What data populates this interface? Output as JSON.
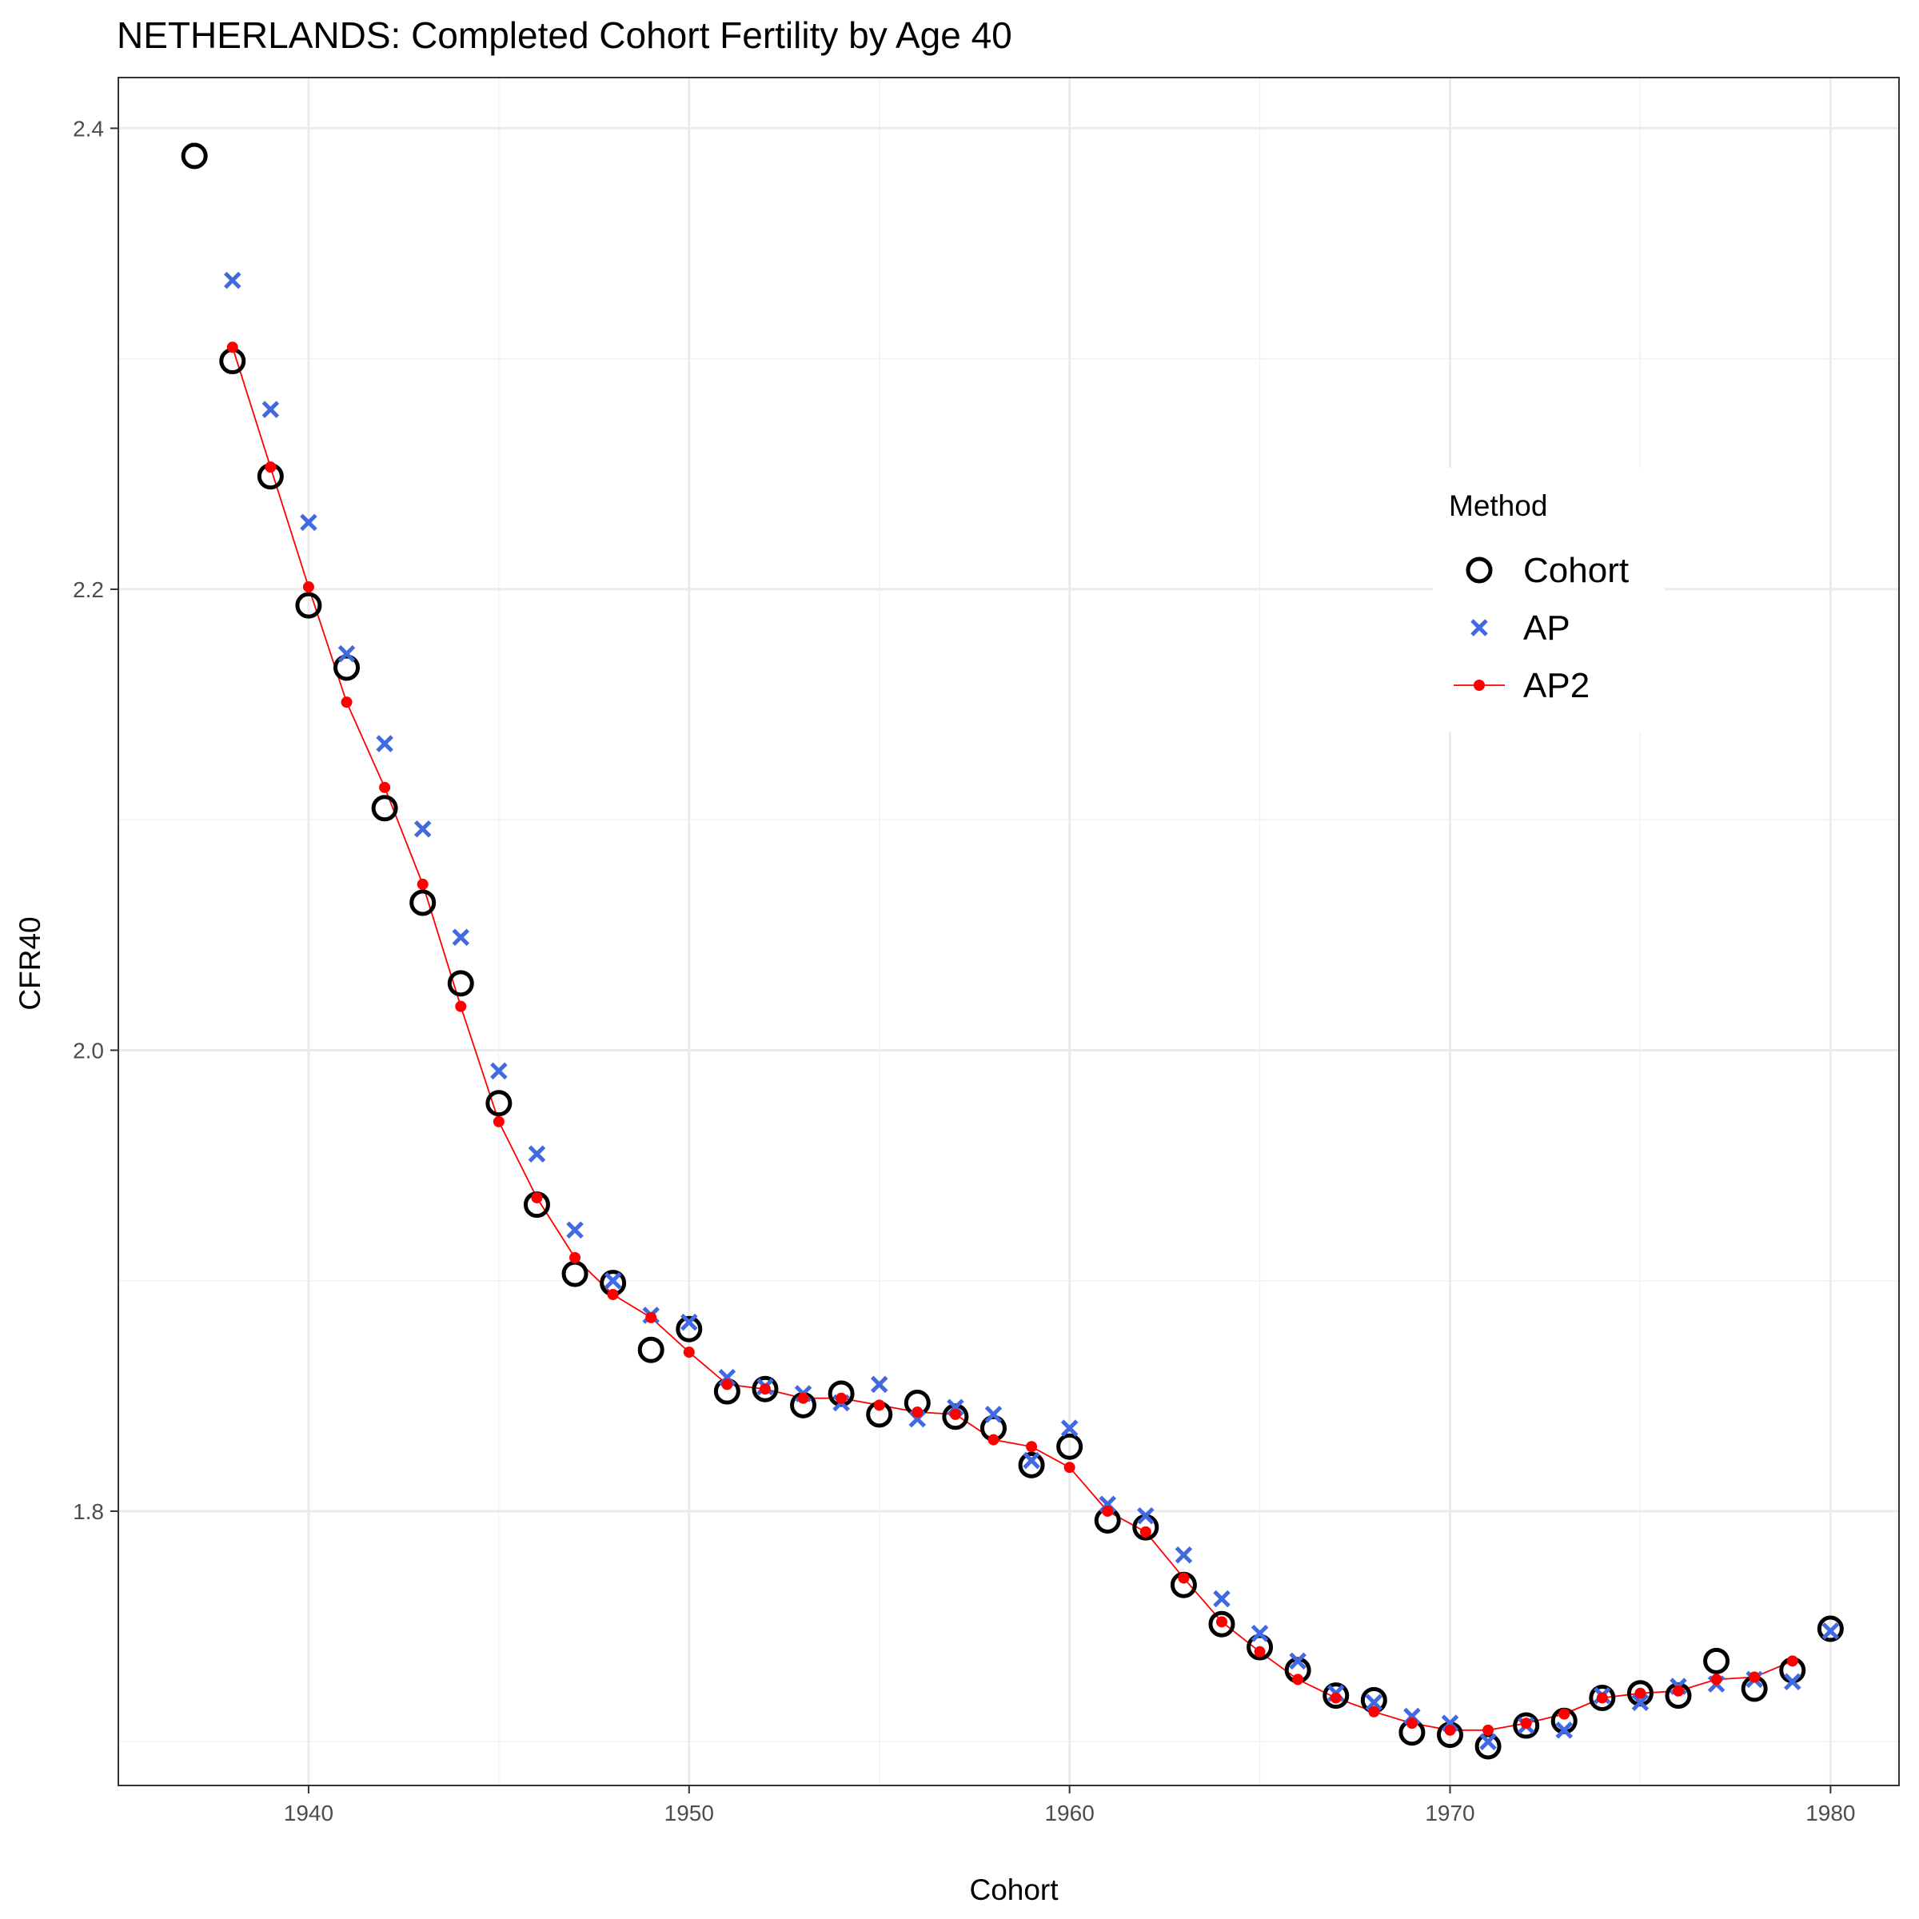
{
  "chart_data": {
    "type": "scatter",
    "title": "NETHERLANDS: Completed Cohort Fertility by Age 40",
    "xlabel": "Cohort",
    "ylabel": "CFR40",
    "xlim": [
      1935,
      1981.8
    ],
    "ylim": [
      1.681,
      2.422
    ],
    "x_ticks": [
      1940,
      1950,
      1960,
      1970,
      1980
    ],
    "y_ticks": [
      1.8,
      2.0,
      2.2,
      2.4
    ],
    "y_tick_labels": [
      "1.8",
      "2.0",
      "2.2",
      "2.4"
    ],
    "grid": true,
    "legend": {
      "title": "Method",
      "position": "right",
      "entries": [
        "Cohort",
        "AP",
        "AP2"
      ]
    },
    "colors": {
      "Cohort": "#000000",
      "AP": "#4169E1",
      "AP2": "#FF0000"
    },
    "series": [
      {
        "name": "Cohort",
        "marker": "open-circle",
        "x": [
          1937,
          1938,
          1939,
          1940,
          1941,
          1942,
          1943,
          1944,
          1945,
          1946,
          1947,
          1948,
          1949,
          1950,
          1951,
          1952,
          1953,
          1954,
          1955,
          1956,
          1957,
          1958,
          1959,
          1960,
          1961,
          1962,
          1963,
          1964,
          1965,
          1966,
          1967,
          1968,
          1969,
          1970,
          1971,
          1972,
          1973,
          1974,
          1975,
          1976,
          1977,
          1978,
          1979,
          1980
        ],
        "y": [
          2.388,
          2.299,
          2.249,
          2.193,
          2.166,
          2.105,
          2.064,
          2.029,
          1.977,
          1.933,
          1.903,
          1.899,
          1.87,
          1.879,
          1.852,
          1.853,
          1.846,
          1.851,
          1.842,
          1.847,
          1.841,
          1.836,
          1.82,
          1.828,
          1.796,
          1.793,
          1.768,
          1.751,
          1.741,
          1.731,
          1.72,
          1.718,
          1.704,
          1.703,
          1.698,
          1.707,
          1.709,
          1.719,
          1.721,
          1.72,
          1.735,
          1.723,
          1.731,
          1.749
        ]
      },
      {
        "name": "AP",
        "marker": "x",
        "x": [
          1938,
          1939,
          1940,
          1941,
          1942,
          1943,
          1944,
          1945,
          1946,
          1947,
          1948,
          1949,
          1950,
          1951,
          1952,
          1953,
          1954,
          1955,
          1956,
          1957,
          1958,
          1959,
          1960,
          1961,
          1962,
          1963,
          1964,
          1965,
          1966,
          1967,
          1968,
          1969,
          1970,
          1971,
          1972,
          1973,
          1974,
          1975,
          1976,
          1977,
          1978,
          1979,
          1980
        ],
        "y": [
          2.334,
          2.278,
          2.229,
          2.172,
          2.133,
          2.096,
          2.049,
          1.991,
          1.955,
          1.922,
          1.9,
          1.885,
          1.882,
          1.858,
          1.854,
          1.851,
          1.847,
          1.855,
          1.84,
          1.845,
          1.842,
          1.822,
          1.836,
          1.803,
          1.798,
          1.781,
          1.762,
          1.747,
          1.735,
          1.721,
          1.717,
          1.711,
          1.708,
          1.7,
          1.707,
          1.705,
          1.72,
          1.717,
          1.724,
          1.725,
          1.727,
          1.726,
          1.748
        ]
      },
      {
        "name": "AP2",
        "marker": "dot-line",
        "x": [
          1938,
          1939,
          1940,
          1941,
          1942,
          1943,
          1944,
          1945,
          1946,
          1947,
          1948,
          1949,
          1950,
          1951,
          1952,
          1953,
          1954,
          1955,
          1956,
          1957,
          1958,
          1959,
          1960,
          1961,
          1962,
          1963,
          1964,
          1965,
          1966,
          1967,
          1968,
          1969,
          1970,
          1971,
          1972,
          1973,
          1974,
          1975,
          1976,
          1977,
          1978,
          1979
        ],
        "y": [
          2.305,
          2.253,
          2.201,
          2.151,
          2.114,
          2.072,
          2.019,
          1.969,
          1.936,
          1.91,
          1.894,
          1.884,
          1.869,
          1.855,
          1.853,
          1.849,
          1.849,
          1.846,
          1.843,
          1.842,
          1.831,
          1.828,
          1.819,
          1.8,
          1.791,
          1.771,
          1.752,
          1.739,
          1.727,
          1.719,
          1.713,
          1.708,
          1.705,
          1.705,
          1.708,
          1.712,
          1.719,
          1.721,
          1.722,
          1.727,
          1.728,
          1.735
        ]
      }
    ]
  }
}
